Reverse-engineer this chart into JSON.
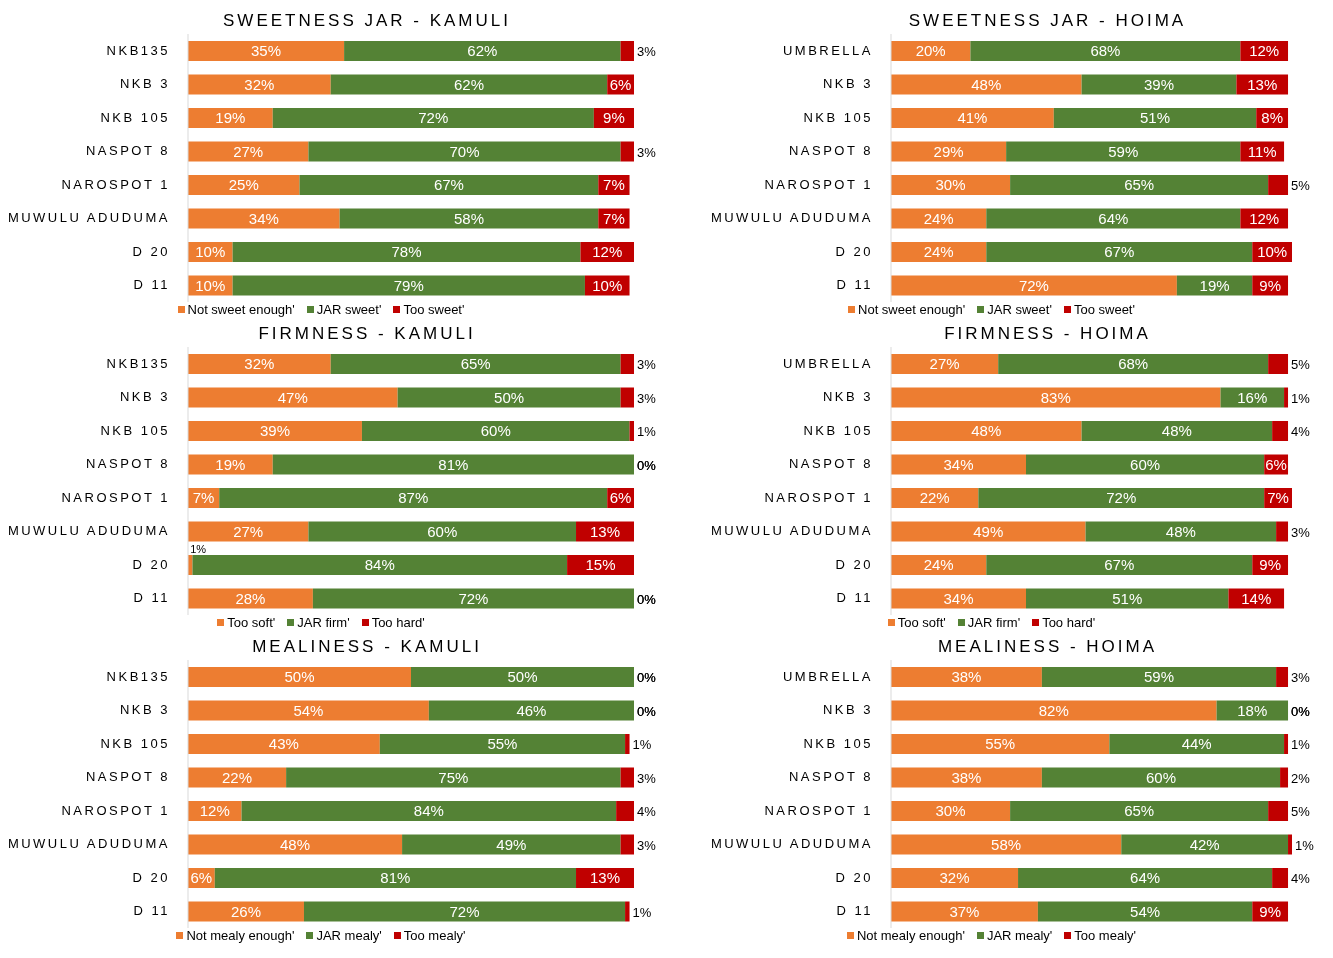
{
  "chart_data": [
    {
      "type": "bar",
      "orientation": "horizontal",
      "stacked": true,
      "title": "SWEETNESS JAR - KAMULI",
      "legend": "bottom",
      "categories": [
        "NKB135",
        "NKB 3",
        "NKB 105",
        "NASPOT 8",
        "NAROSPOT 1",
        "MUWULU ADUDUMA",
        "D 20",
        "D 11"
      ],
      "series": [
        {
          "name": "Not sweet enough'",
          "color": "#ed7d31",
          "values": [
            35,
            32,
            19,
            27,
            25,
            34,
            10,
            10
          ],
          "value_labels": [
            "35%",
            "32%",
            "19%",
            "27%",
            "25%",
            "34%",
            "10%",
            "10%"
          ]
        },
        {
          "name": "JAR sweet'",
          "color": "#548235",
          "values": [
            62,
            62,
            72,
            70,
            67,
            58,
            78,
            79
          ],
          "value_labels": [
            "62%",
            "62%",
            "72%",
            "70%",
            "67%",
            "58%",
            "78%",
            "79%"
          ]
        },
        {
          "name": "Too sweet'",
          "color": "#c00000",
          "values": [
            3,
            6,
            9,
            3,
            7,
            7,
            12,
            10
          ],
          "value_labels": [
            "3%",
            "6%",
            "9%",
            "3%",
            "7%",
            "7%",
            "12%",
            "10%"
          ]
        }
      ]
    },
    {
      "type": "bar",
      "orientation": "horizontal",
      "stacked": true,
      "title": "SWEETNESS JAR - HOIMA",
      "legend": "bottom",
      "categories": [
        "UMBRELLA",
        "NKB 3",
        "NKB 105",
        "NASPOT 8",
        "NAROSPOT 1",
        "MUWULU ADUDUMA",
        "D 20",
        "D 11"
      ],
      "series": [
        {
          "name": "Not sweet enough'",
          "color": "#ed7d31",
          "values": [
            20,
            48,
            41,
            29,
            30,
            24,
            24,
            72
          ],
          "value_labels": [
            "20%",
            "48%",
            "41%",
            "29%",
            "30%",
            "24%",
            "24%",
            "72%"
          ]
        },
        {
          "name": "JAR sweet'",
          "color": "#548235",
          "values": [
            68,
            39,
            51,
            59,
            65,
            64,
            67,
            19
          ],
          "value_labels": [
            "68%",
            "39%",
            "51%",
            "59%",
            "65%",
            "64%",
            "67%",
            "19%"
          ]
        },
        {
          "name": "Too sweet'",
          "color": "#c00000",
          "values": [
            12,
            13,
            8,
            11,
            5,
            12,
            10,
            9
          ],
          "value_labels": [
            "12%",
            "13%",
            "8%",
            "11%",
            "5%",
            "12%",
            "10%",
            "9%"
          ]
        }
      ]
    },
    {
      "type": "bar",
      "orientation": "horizontal",
      "stacked": true,
      "title": "FIRMNESS - KAMULI",
      "legend": "bottom",
      "categories": [
        "NKB135",
        "NKB 3",
        "NKB 105",
        "NASPOT 8",
        "NAROSPOT 1",
        "MUWULU ADUDUMA",
        "D 20",
        "D 11"
      ],
      "series": [
        {
          "name": "Too soft'",
          "color": "#ed7d31",
          "values": [
            32,
            47,
            39,
            19,
            7,
            27,
            1,
            28
          ],
          "value_labels": [
            "32%",
            "47%",
            "39%",
            "19%",
            "7%",
            "27%",
            "1%",
            "28%"
          ]
        },
        {
          "name": "JAR firm'",
          "color": "#548235",
          "values": [
            65,
            50,
            60,
            81,
            87,
            60,
            84,
            72
          ],
          "value_labels": [
            "65%",
            "50%",
            "60%",
            "81%",
            "87%",
            "60%",
            "84%",
            "72%"
          ]
        },
        {
          "name": "Too hard'",
          "color": "#c00000",
          "values": [
            3,
            3,
            1,
            0,
            6,
            13,
            15,
            0
          ],
          "value_labels": [
            "3%",
            "3%",
            "1%",
            "0%",
            "6%",
            "13%",
            "15%",
            "0%"
          ]
        }
      ]
    },
    {
      "type": "bar",
      "orientation": "horizontal",
      "stacked": true,
      "title": "FIRMNESS - HOIMA",
      "legend": "bottom",
      "categories": [
        "UMBRELLA",
        "NKB 3",
        "NKB 105",
        "NASPOT 8",
        "NAROSPOT 1",
        "MUWULU ADUDUMA",
        "D 20",
        "D 11"
      ],
      "series": [
        {
          "name": "Too soft'",
          "color": "#ed7d31",
          "values": [
            27,
            83,
            48,
            34,
            22,
            49,
            24,
            34
          ],
          "value_labels": [
            "27%",
            "83%",
            "48%",
            "34%",
            "22%",
            "49%",
            "24%",
            "34%"
          ]
        },
        {
          "name": "JAR firm'",
          "color": "#548235",
          "values": [
            68,
            16,
            48,
            60,
            72,
            48,
            67,
            51
          ],
          "value_labels": [
            "68%",
            "16%",
            "48%",
            "60%",
            "72%",
            "48%",
            "67%",
            "51%"
          ]
        },
        {
          "name": "Too hard'",
          "color": "#c00000",
          "values": [
            5,
            1,
            4,
            6,
            7,
            3,
            9,
            14
          ],
          "value_labels": [
            "5%",
            "1%",
            "4%",
            "6%",
            "7%",
            "3%",
            "9%",
            "14%"
          ]
        }
      ]
    },
    {
      "type": "bar",
      "orientation": "horizontal",
      "stacked": true,
      "title": "MEALINESS - KAMULI",
      "legend": "bottom",
      "categories": [
        "NKB135",
        "NKB 3",
        "NKB 105",
        "NASPOT 8",
        "NAROSPOT 1",
        "MUWULU ADUDUMA",
        "D 20",
        "D 11"
      ],
      "series": [
        {
          "name": "Not mealy enough'",
          "color": "#ed7d31",
          "values": [
            50,
            54,
            43,
            22,
            12,
            48,
            6,
            26
          ],
          "value_labels": [
            "50%",
            "54%",
            "43%",
            "22%",
            "12%",
            "48%",
            "6%",
            "26%"
          ]
        },
        {
          "name": "JAR mealy'",
          "color": "#548235",
          "values": [
            50,
            46,
            55,
            75,
            84,
            49,
            81,
            72
          ],
          "value_labels": [
            "50%",
            "46%",
            "55%",
            "75%",
            "84%",
            "49%",
            "81%",
            "72%"
          ]
        },
        {
          "name": "Too mealy'",
          "color": "#c00000",
          "values": [
            0,
            0,
            1,
            3,
            4,
            3,
            13,
            1
          ],
          "value_labels": [
            "0%",
            "0%",
            "1%",
            "3%",
            "4%",
            "3%",
            "13%",
            "1%"
          ]
        }
      ]
    },
    {
      "type": "bar",
      "orientation": "horizontal",
      "stacked": true,
      "title": "MEALINESS - HOIMA",
      "legend": "bottom",
      "categories": [
        "UMBRELLA",
        "NKB 3",
        "NKB 105",
        "NASPOT 8",
        "NAROSPOT 1",
        "MUWULU ADUDUMA",
        "D 20",
        "D 11"
      ],
      "series": [
        {
          "name": "Not mealy enough'",
          "color": "#ed7d31",
          "values": [
            38,
            82,
            55,
            38,
            30,
            58,
            32,
            37
          ],
          "value_labels": [
            "38%",
            "82%",
            "55%",
            "38%",
            "30%",
            "58%",
            "32%",
            "37%"
          ]
        },
        {
          "name": "JAR mealy'",
          "color": "#548235",
          "values": [
            59,
            18,
            44,
            60,
            65,
            42,
            64,
            54
          ],
          "value_labels": [
            "59%",
            "18%",
            "44%",
            "60%",
            "65%",
            "42%",
            "64%",
            "54%"
          ]
        },
        {
          "name": "Too mealy'",
          "color": "#c00000",
          "values": [
            3,
            0,
            1,
            2,
            5,
            1,
            4,
            9
          ],
          "value_labels": [
            "3%",
            "0%",
            "1%",
            "2%",
            "5%",
            "1%",
            "4%",
            "9%"
          ]
        }
      ]
    }
  ]
}
